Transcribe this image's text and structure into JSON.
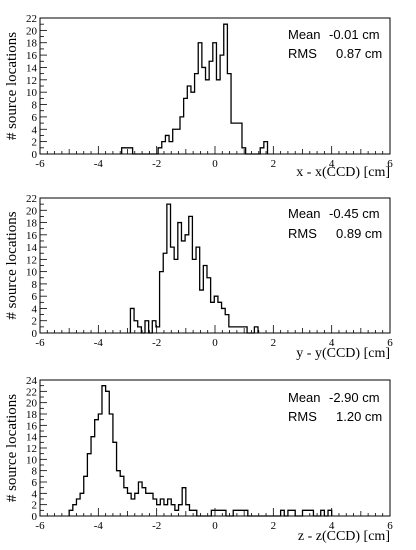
{
  "chart_data": [
    {
      "type": "histogram",
      "ylabel": "# source locations",
      "xlabel": "x - x(CCD) [cm]",
      "xlim": [
        -6,
        6
      ],
      "ylim": [
        0,
        22
      ],
      "x_ticks": [
        "-6",
        "-4",
        "-2",
        "0",
        "2",
        "4",
        "6"
      ],
      "y_ticks": [
        "0",
        "2",
        "4",
        "6",
        "8",
        "10",
        "12",
        "14",
        "16",
        "18",
        "20",
        "22"
      ],
      "stats": {
        "mean_label": "Mean",
        "mean_value": "-0.01 cm",
        "rms_label": "RMS",
        "rms_value": "0.87 cm"
      },
      "bin_start": -3.2,
      "bin_width": 0.125,
      "counts": [
        1,
        1,
        1,
        0,
        0,
        0,
        0,
        0,
        0,
        0,
        1,
        2,
        3,
        2,
        4,
        4,
        6,
        9,
        11,
        10,
        13,
        18,
        14,
        12,
        15,
        18,
        12,
        16,
        21,
        13,
        5,
        5,
        5,
        1,
        0,
        0,
        0,
        0,
        1,
        2
      ]
    },
    {
      "type": "histogram",
      "ylabel": "# source locations",
      "xlabel": "y - y(CCD) [cm]",
      "xlim": [
        -6,
        6
      ],
      "ylim": [
        0,
        22
      ],
      "x_ticks": [
        "-6",
        "-4",
        "-2",
        "0",
        "2",
        "4",
        "6"
      ],
      "y_ticks": [
        "0",
        "2",
        "4",
        "6",
        "8",
        "10",
        "12",
        "14",
        "16",
        "18",
        "20",
        "22"
      ],
      "stats": {
        "mean_label": "Mean",
        "mean_value": "-0.45 cm",
        "rms_label": "RMS",
        "rms_value": "0.89 cm"
      },
      "bin_start": -2.9,
      "bin_width": 0.125,
      "counts": [
        4,
        2,
        1,
        0,
        2,
        0,
        2,
        1,
        10,
        13,
        21,
        14,
        12,
        18,
        15,
        16,
        19,
        12,
        14,
        7,
        11,
        9,
        5,
        6,
        5,
        4,
        3,
        1,
        1,
        1,
        1,
        1,
        0,
        0,
        1
      ]
    },
    {
      "type": "histogram",
      "ylabel": "# source locations",
      "xlabel": "z - z(CCD) [cm]",
      "xlim": [
        -6,
        6
      ],
      "ylim": [
        0,
        24
      ],
      "x_ticks": [
        "-6",
        "-4",
        "-2",
        "0",
        "2",
        "4",
        "6"
      ],
      "y_ticks": [
        "0",
        "2",
        "4",
        "6",
        "8",
        "10",
        "12",
        "14",
        "16",
        "18",
        "20",
        "22",
        "24"
      ],
      "stats": {
        "mean_label": "Mean",
        "mean_value": "-2.90 cm",
        "rms_label": "RMS",
        "rms_value": "1.20 cm"
      },
      "bin_start": -5.0,
      "bin_width": 0.125,
      "counts": [
        1,
        2,
        3,
        4,
        7,
        11,
        14,
        17,
        18,
        23,
        22,
        18,
        13,
        8,
        7,
        5,
        4,
        3,
        4,
        6,
        5,
        4,
        4,
        3,
        2,
        3,
        2,
        3,
        2,
        1,
        2,
        5,
        2,
        1,
        1,
        0,
        0,
        0,
        0,
        1,
        1,
        1,
        1,
        0,
        0,
        1,
        1,
        1,
        1,
        0,
        0,
        0,
        0,
        0,
        0,
        0,
        0,
        0,
        1,
        0,
        1,
        1,
        0,
        0,
        1,
        1,
        1,
        0,
        0,
        1,
        0,
        1
      ]
    }
  ]
}
